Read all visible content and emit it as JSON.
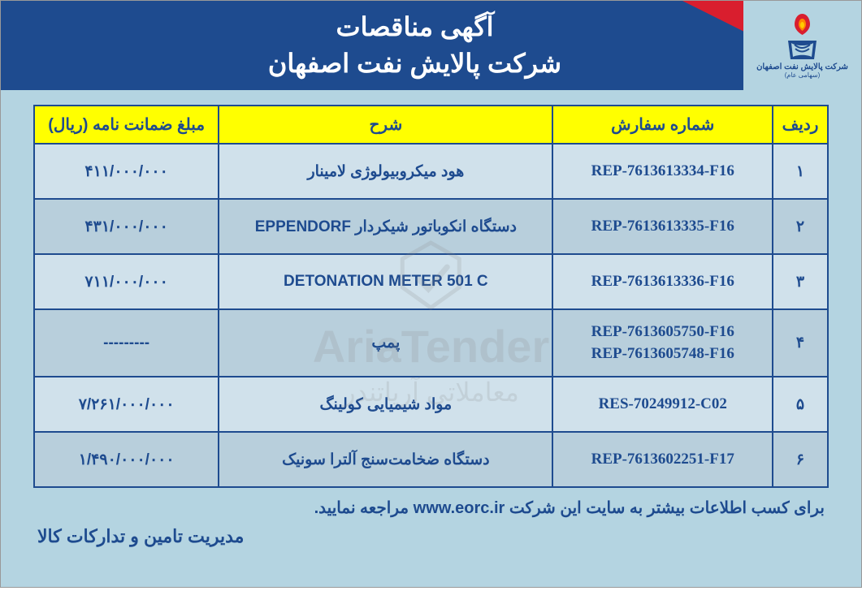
{
  "header": {
    "title_line1": "آگهی مناقصات",
    "title_line2": "شرکت پالایش نفت اصفهان",
    "logo_text": "شرکت پالایش نفت اصفهان",
    "logo_subtext": "(سهامی عام)",
    "header_bg": "#1e4b8f",
    "accent_color": "#d91e2e",
    "page_bg": "#b4d4e1"
  },
  "table": {
    "header_bg": "#ffff00",
    "header_fg": "#1e4b8f",
    "border_color": "#1e4b8f",
    "row_bg": "#d0e1eb",
    "row_alt_bg": "#b8cfdc",
    "columns": {
      "row": "ردیف",
      "order": "شماره سفارش",
      "desc": "شرح",
      "amount": "مبلغ ضمانت نامه (ریال)"
    },
    "rows": [
      {
        "n": "۱",
        "order": "REP-7613613334-F16",
        "desc": "هود میکروبیولوژی لامینار",
        "amount": "۴۱۱/۰۰۰/۰۰۰"
      },
      {
        "n": "۲",
        "order": "REP-7613613335-F16",
        "desc": "دستگاه انکوباتور شیکردار EPPENDORF",
        "amount": "۴۳۱/۰۰۰/۰۰۰"
      },
      {
        "n": "۳",
        "order": "REP-7613613336-F16",
        "desc": "DETONATION METER 501 C",
        "amount": "۷۱۱/۰۰۰/۰۰۰"
      },
      {
        "n": "۴",
        "order": "REP-7613605750-F16\nREP-7613605748-F16",
        "desc": "پمپ",
        "amount": "---------"
      },
      {
        "n": "۵",
        "order": "RES-70249912-C02",
        "desc": "مواد شیمیایی کولینگ",
        "amount": "۷/۲۶۱/۰۰۰/۰۰۰"
      },
      {
        "n": "۶",
        "order": "REP-7613602251-F17",
        "desc": "دستگاه ضخامت‌سنج آلترا سونیک",
        "amount": "۱/۴۹۰/۰۰۰/۰۰۰"
      }
    ]
  },
  "footer": {
    "info_prefix": "برای کسب اطلاعات بیشتر به سایت این شرکت ",
    "info_url": "www.eorc.ir",
    "info_suffix": " مراجعه نمایید.",
    "department": "مدیریت تامین و تدارکات کالا"
  },
  "watermark": {
    "main": "AriaTender",
    "sub": "معاملاتی آریاتندر"
  }
}
